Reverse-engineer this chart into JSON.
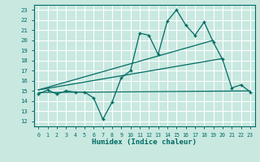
{
  "xlabel": "Humidex (Indice chaleur)",
  "ylabel": "",
  "bg_color": "#c8e8e0",
  "grid_color": "#ffffff",
  "line_color": "#006b63",
  "xlim": [
    -0.5,
    23.5
  ],
  "ylim": [
    11.5,
    23.5
  ],
  "xticks": [
    0,
    1,
    2,
    3,
    4,
    5,
    6,
    7,
    8,
    9,
    10,
    11,
    12,
    13,
    14,
    15,
    16,
    17,
    18,
    19,
    20,
    21,
    22,
    23
  ],
  "yticks": [
    12,
    13,
    14,
    15,
    16,
    17,
    18,
    19,
    20,
    21,
    22,
    23
  ],
  "main_x": [
    0,
    1,
    2,
    3,
    4,
    5,
    6,
    7,
    8,
    9,
    10,
    11,
    12,
    13,
    14,
    15,
    16,
    17,
    18,
    19,
    20,
    21,
    22,
    23
  ],
  "main_y": [
    14.7,
    15.1,
    14.7,
    15.0,
    14.9,
    14.9,
    14.3,
    12.2,
    13.9,
    16.3,
    17.0,
    20.7,
    20.5,
    18.6,
    21.9,
    23.0,
    21.5,
    20.5,
    21.8,
    19.8,
    18.1,
    15.3,
    15.6,
    14.9
  ],
  "trend1_x": [
    0,
    23
  ],
  "trend1_y": [
    14.85,
    15.0
  ],
  "trend2_x": [
    0,
    20
  ],
  "trend2_y": [
    15.1,
    18.2
  ],
  "trend3_x": [
    0,
    19
  ],
  "trend3_y": [
    15.1,
    20.0
  ]
}
